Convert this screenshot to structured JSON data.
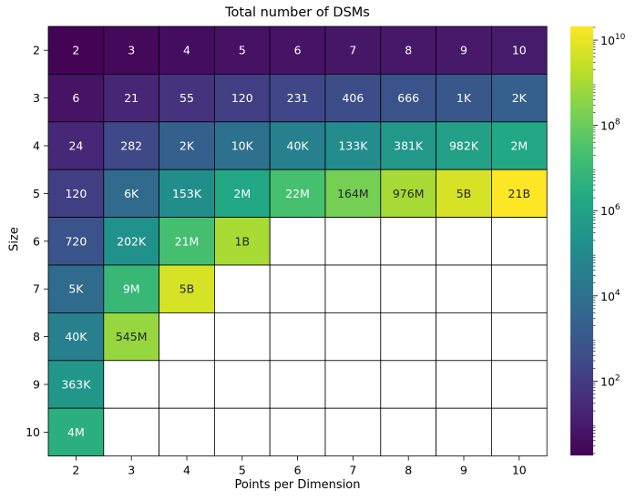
{
  "chart_data": {
    "type": "heatmap",
    "title": "Total number of DSMs",
    "xlabel": "Points per Dimension",
    "ylabel": "Size",
    "x_categories": [
      "2",
      "3",
      "4",
      "5",
      "6",
      "7",
      "8",
      "9",
      "10"
    ],
    "y_categories": [
      "2",
      "3",
      "4",
      "5",
      "6",
      "7",
      "8",
      "9",
      "10"
    ],
    "values": [
      [
        2,
        3,
        4,
        5,
        6,
        7,
        8,
        9,
        10
      ],
      [
        6,
        21,
        55,
        120,
        231,
        406,
        666,
        1000,
        2000
      ],
      [
        24,
        282,
        2000,
        10000,
        40000,
        133000,
        381000,
        982000,
        2000000
      ],
      [
        120,
        6000,
        153000,
        2000000,
        22000000,
        164000000,
        976000000,
        5000000000,
        21000000000
      ],
      [
        720,
        202000,
        21000000,
        1000000000,
        null,
        null,
        null,
        null,
        null
      ],
      [
        5000,
        9000000,
        5000000000,
        null,
        null,
        null,
        null,
        null,
        null
      ],
      [
        40000,
        545000000,
        null,
        null,
        null,
        null,
        null,
        null,
        null
      ],
      [
        363000,
        null,
        null,
        null,
        null,
        null,
        null,
        null,
        null
      ],
      [
        4000000,
        null,
        null,
        null,
        null,
        null,
        null,
        null,
        null
      ]
    ],
    "labels": [
      [
        "2",
        "3",
        "4",
        "5",
        "6",
        "7",
        "8",
        "9",
        "10"
      ],
      [
        "6",
        "21",
        "55",
        "120",
        "231",
        "406",
        "666",
        "1K",
        "2K"
      ],
      [
        "24",
        "282",
        "2K",
        "10K",
        "40K",
        "133K",
        "381K",
        "982K",
        "2M"
      ],
      [
        "120",
        "6K",
        "153K",
        "2M",
        "22M",
        "164M",
        "976M",
        "5B",
        "21B"
      ],
      [
        "720",
        "202K",
        "21M",
        "1B",
        "",
        "",
        "",
        "",
        ""
      ],
      [
        "5K",
        "9M",
        "5B",
        "",
        "",
        "",
        "",
        "",
        ""
      ],
      [
        "40K",
        "545M",
        "",
        "",
        "",
        "",
        "",
        "",
        ""
      ],
      [
        "363K",
        "",
        "",
        "",
        "",
        "",
        "",
        "",
        ""
      ],
      [
        "4M",
        "",
        "",
        "",
        "",
        "",
        "",
        "",
        ""
      ]
    ],
    "colorbar": {
      "scale": "log",
      "colormap": "viridis",
      "range": [
        1.8,
        21000000000
      ],
      "ticks": [
        100,
        10000,
        1000000,
        100000000,
        10000000000
      ],
      "tick_bases": [
        "10",
        "10",
        "10",
        "10",
        "10"
      ],
      "tick_exponents": [
        "2",
        "4",
        "6",
        "8",
        "10"
      ]
    }
  }
}
